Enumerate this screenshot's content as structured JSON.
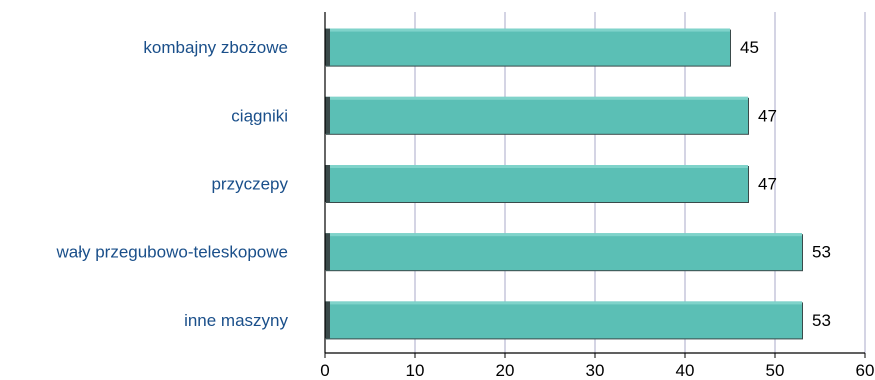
{
  "chart_data": {
    "type": "bar",
    "orientation": "horizontal",
    "categories": [
      "kombajny zbożowe",
      "ciągniki",
      "przyczepy",
      "wały przegubowo-teleskopowe",
      "inne maszyny"
    ],
    "values": [
      45,
      47,
      47,
      53,
      53
    ],
    "data_labels": [
      "45",
      "47",
      "47",
      "53",
      "53"
    ],
    "x_ticks": [
      "0",
      "10",
      "20",
      "30",
      "40",
      "50",
      "60"
    ],
    "xlim": [
      0,
      60
    ],
    "grid": "vertical",
    "legend": "none",
    "colors": {
      "bar": "#5bbfb5",
      "bar_edge": "#3a4a4a",
      "category_text": "#1a4f8a",
      "grid": "#a8a8c8",
      "axis": "#000000"
    }
  }
}
